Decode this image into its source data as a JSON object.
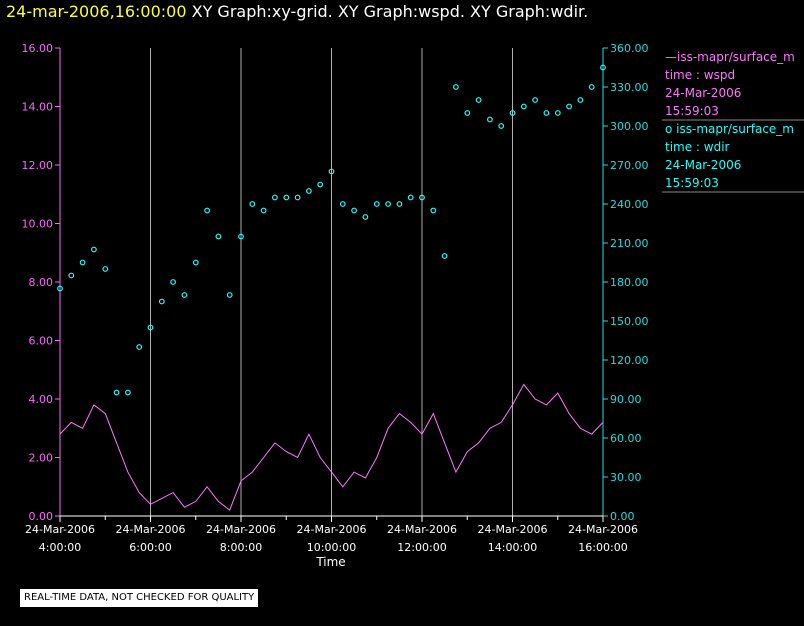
{
  "header": {
    "timestamp": "24-mar-2006,16:00:00",
    "graphs": "XY Graph:xy-grid.  XY Graph:wspd.  XY Graph:wdir."
  },
  "footer": {
    "notice": "REAL-TIME DATA, NOT CHECKED FOR QUALITY"
  },
  "legend": {
    "wspd": {
      "line1": "—iss-mapr/surface_m",
      "line2": "time : wspd",
      "line3": "24-Mar-2006",
      "line4": "15:59:03"
    },
    "wdir": {
      "line1": "o  iss-mapr/surface_m",
      "line2": "time : wdir",
      "line3": "24-Mar-2006",
      "line4": "15:59:03"
    }
  },
  "colors": {
    "wspd": "#ff77ff",
    "wdir": "#22ffff",
    "left_axis": "#ff66ff",
    "right_axis": "#22dddd",
    "grid": "#b0b0b0",
    "axis": "#ffffff"
  },
  "chart_data": {
    "type": "line",
    "title": "24-mar-2006,16:00:00  XY Graph:xy-grid.  XY Graph:wspd.  XY Graph:wdir.",
    "xlabel": "Time",
    "xlim_hours": [
      4.0,
      16.0
    ],
    "x_ticks": [
      {
        "hour": 4,
        "date": "24-Mar-2006",
        "time": "4:00:00"
      },
      {
        "hour": 6,
        "date": "24-Mar-2006",
        "time": "6:00:00"
      },
      {
        "hour": 8,
        "date": "24-Mar-2006",
        "time": "8:00:00"
      },
      {
        "hour": 10,
        "date": "24-Mar-2006",
        "time": "10:00:00"
      },
      {
        "hour": 12,
        "date": "24-Mar-2006",
        "time": "12:00:00"
      },
      {
        "hour": 14,
        "date": "24-Mar-2006",
        "time": "14:00:00"
      },
      {
        "hour": 16,
        "date": "24-Mar-2006",
        "time": "16:00:00"
      }
    ],
    "y_left": {
      "label": "wspd",
      "ylim": [
        0,
        16
      ],
      "ticks": [
        "0.00",
        "2.00",
        "4.00",
        "6.00",
        "8.00",
        "10.00",
        "12.00",
        "14.00",
        "16.00"
      ]
    },
    "y_right": {
      "label": "wdir",
      "ylim": [
        0,
        360
      ],
      "ticks": [
        "0.00",
        "30.00",
        "60.00",
        "90.00",
        "120.00",
        "150.00",
        "180.00",
        "210.00",
        "240.00",
        "270.00",
        "300.00",
        "330.00",
        "360.00"
      ]
    },
    "series": [
      {
        "name": "wspd",
        "axis": "left",
        "style": "line",
        "points": [
          [
            4.0,
            2.8
          ],
          [
            4.25,
            3.2
          ],
          [
            4.5,
            3.0
          ],
          [
            4.75,
            3.8
          ],
          [
            5.0,
            3.5
          ],
          [
            5.25,
            2.5
          ],
          [
            5.5,
            1.5
          ],
          [
            5.75,
            0.8
          ],
          [
            6.0,
            0.4
          ],
          [
            6.25,
            0.6
          ],
          [
            6.5,
            0.8
          ],
          [
            6.75,
            0.3
          ],
          [
            7.0,
            0.5
          ],
          [
            7.25,
            1.0
          ],
          [
            7.5,
            0.5
          ],
          [
            7.75,
            0.2
          ],
          [
            8.0,
            1.2
          ],
          [
            8.25,
            1.5
          ],
          [
            8.5,
            2.0
          ],
          [
            8.75,
            2.5
          ],
          [
            9.0,
            2.2
          ],
          [
            9.25,
            2.0
          ],
          [
            9.5,
            2.8
          ],
          [
            9.75,
            2.0
          ],
          [
            10.0,
            1.5
          ],
          [
            10.25,
            1.0
          ],
          [
            10.5,
            1.5
          ],
          [
            10.75,
            1.3
          ],
          [
            11.0,
            2.0
          ],
          [
            11.25,
            3.0
          ],
          [
            11.5,
            3.5
          ],
          [
            11.75,
            3.2
          ],
          [
            12.0,
            2.8
          ],
          [
            12.25,
            3.5
          ],
          [
            12.5,
            2.5
          ],
          [
            12.75,
            1.5
          ],
          [
            13.0,
            2.2
          ],
          [
            13.25,
            2.5
          ],
          [
            13.5,
            3.0
          ],
          [
            13.75,
            3.2
          ],
          [
            14.0,
            3.8
          ],
          [
            14.25,
            4.5
          ],
          [
            14.5,
            4.0
          ],
          [
            14.75,
            3.8
          ],
          [
            15.0,
            4.2
          ],
          [
            15.25,
            3.5
          ],
          [
            15.5,
            3.0
          ],
          [
            15.75,
            2.8
          ],
          [
            16.0,
            3.2
          ]
        ]
      },
      {
        "name": "wdir",
        "axis": "right",
        "style": "circles",
        "points": [
          [
            4.0,
            175
          ],
          [
            4.25,
            185
          ],
          [
            4.5,
            195
          ],
          [
            4.75,
            205
          ],
          [
            5.0,
            190
          ],
          [
            5.25,
            95
          ],
          [
            5.5,
            95
          ],
          [
            5.75,
            130
          ],
          [
            6.0,
            145
          ],
          [
            6.25,
            165
          ],
          [
            6.5,
            180
          ],
          [
            6.75,
            170
          ],
          [
            7.0,
            195
          ],
          [
            7.25,
            235
          ],
          [
            7.5,
            215
          ],
          [
            7.75,
            170
          ],
          [
            8.0,
            215
          ],
          [
            8.25,
            240
          ],
          [
            8.5,
            235
          ],
          [
            8.75,
            245
          ],
          [
            9.0,
            245
          ],
          [
            9.25,
            245
          ],
          [
            9.5,
            250
          ],
          [
            9.75,
            255
          ],
          [
            10.0,
            265
          ],
          [
            10.25,
            240
          ],
          [
            10.5,
            235
          ],
          [
            10.75,
            230
          ],
          [
            11.0,
            240
          ],
          [
            11.25,
            240
          ],
          [
            11.5,
            240
          ],
          [
            11.75,
            245
          ],
          [
            12.0,
            245
          ],
          [
            12.25,
            235
          ],
          [
            12.5,
            200
          ],
          [
            12.75,
            330
          ],
          [
            13.0,
            310
          ],
          [
            13.25,
            320
          ],
          [
            13.5,
            305
          ],
          [
            13.75,
            300
          ],
          [
            14.0,
            310
          ],
          [
            14.25,
            315
          ],
          [
            14.5,
            320
          ],
          [
            14.75,
            310
          ],
          [
            15.0,
            310
          ],
          [
            15.25,
            315
          ],
          [
            15.5,
            320
          ],
          [
            15.75,
            330
          ],
          [
            16.0,
            345
          ]
        ]
      }
    ]
  }
}
